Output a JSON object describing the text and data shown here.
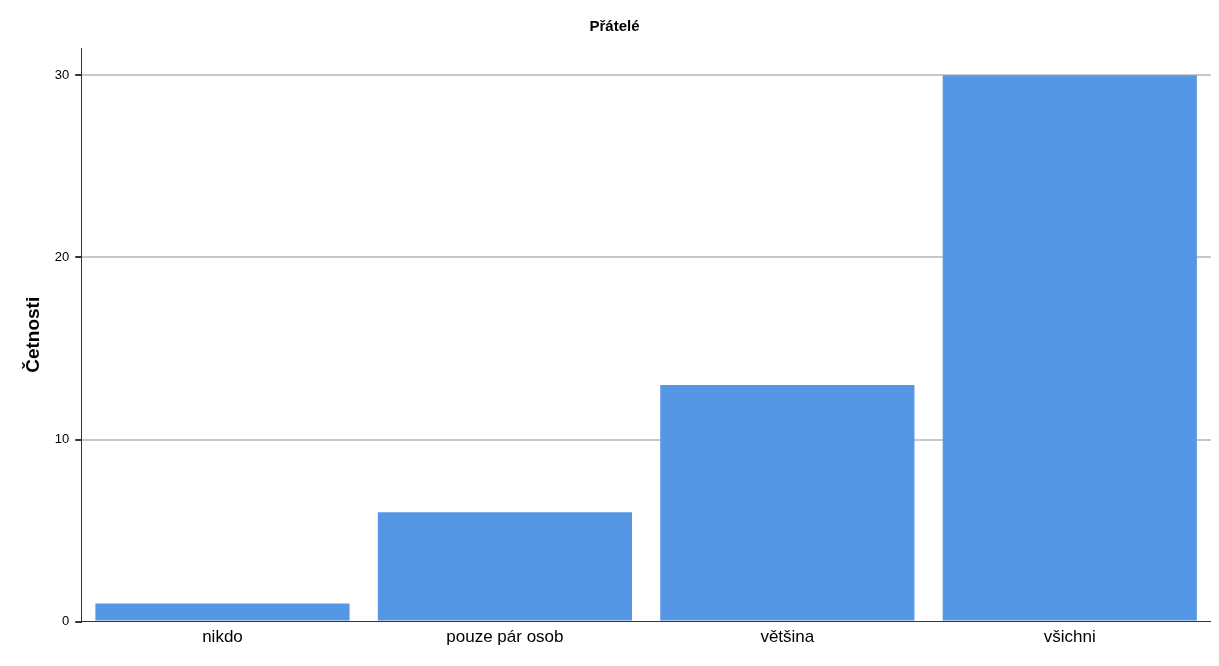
{
  "chart_data": {
    "type": "bar",
    "title": "Přátelé",
    "ylabel": "Četnosti",
    "categories": [
      "nikdo",
      "pouze pár osob",
      "většina",
      "všichni"
    ],
    "values": [
      1,
      6,
      13,
      30
    ],
    "color": "#5596e5",
    "ylim": [
      0,
      31.5
    ],
    "yticks": [
      0,
      10,
      20,
      30
    ],
    "grid": "y",
    "legend": false
  }
}
